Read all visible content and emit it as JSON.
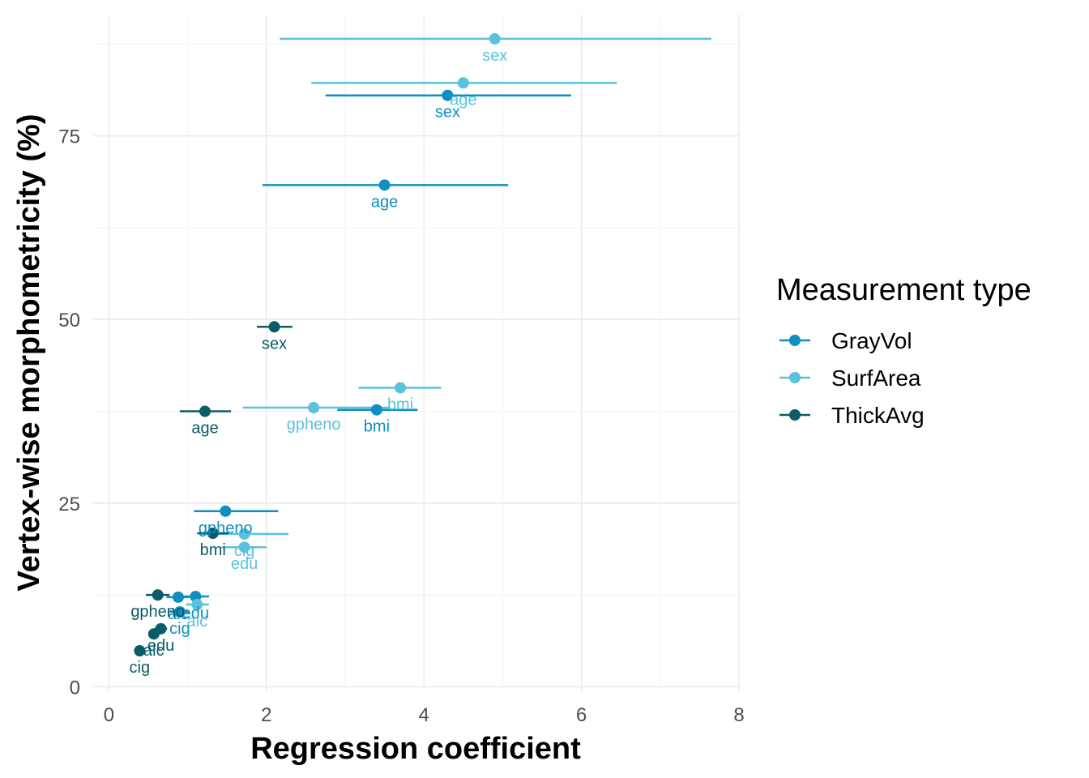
{
  "chart_data": {
    "type": "scatter",
    "xlabel": "Regression coefficient",
    "ylabel": "Vertex-wise morphometricity (%)",
    "xlim": [
      -0.2,
      8.0
    ],
    "ylim": [
      -0.5,
      91.5
    ],
    "x_ticks": [
      0,
      2,
      4,
      6,
      8
    ],
    "y_ticks": [
      0,
      25,
      50,
      75
    ],
    "x_tick_labels": [
      "0",
      "2",
      "4",
      "6",
      "8"
    ],
    "y_tick_labels": [
      "0",
      "25",
      "50",
      "75"
    ],
    "grid": true,
    "error_bars": "horizontal",
    "legend": {
      "title": "Measurement type",
      "position": "right",
      "entries": [
        "GrayVol",
        "SurfArea",
        "ThickAvg"
      ]
    },
    "series": [
      {
        "name": "GrayVol",
        "color": "#0f8fbf",
        "points": [
          {
            "label": "sex",
            "x": 4.3,
            "y": 80.5,
            "xmin": 2.75,
            "xmax": 5.87
          },
          {
            "label": "age",
            "x": 3.5,
            "y": 68.3,
            "xmin": 1.95,
            "xmax": 5.07
          },
          {
            "label": "bmi",
            "x": 3.4,
            "y": 37.7,
            "xmin": 2.9,
            "xmax": 3.92
          },
          {
            "label": "gpheno",
            "x": 1.48,
            "y": 23.9,
            "xmin": 1.08,
            "xmax": 2.15
          },
          {
            "label": "edu",
            "x": 1.1,
            "y": 12.3,
            "xmin": 0.9,
            "xmax": 1.27
          },
          {
            "label": "alc",
            "x": 0.88,
            "y": 12.2,
            "xmin": 0.73,
            "xmax": 1.02
          },
          {
            "label": "cig",
            "x": 0.9,
            "y": 10.2,
            "xmin": 0.78,
            "xmax": 1.03
          }
        ]
      },
      {
        "name": "SurfArea",
        "color": "#5bc2dc",
        "points": [
          {
            "label": "sex",
            "x": 4.9,
            "y": 88.2,
            "xmin": 2.17,
            "xmax": 7.65
          },
          {
            "label": "age",
            "x": 4.5,
            "y": 82.2,
            "xmin": 2.57,
            "xmax": 6.45
          },
          {
            "label": "bmi",
            "x": 3.7,
            "y": 40.7,
            "xmin": 3.17,
            "xmax": 4.22
          },
          {
            "label": "gpheno",
            "x": 2.6,
            "y": 38.0,
            "xmin": 1.7,
            "xmax": 3.55
          },
          {
            "label": "cig",
            "x": 1.72,
            "y": 20.8,
            "xmin": 1.15,
            "xmax": 2.28
          },
          {
            "label": "edu",
            "x": 1.72,
            "y": 19.0,
            "xmin": 1.43,
            "xmax": 2.0
          },
          {
            "label": "alc",
            "x": 1.12,
            "y": 11.2,
            "xmin": 0.98,
            "xmax": 1.27
          }
        ]
      },
      {
        "name": "ThickAvg",
        "color": "#0b5c66",
        "points": [
          {
            "label": "sex",
            "x": 2.1,
            "y": 49.0,
            "xmin": 1.88,
            "xmax": 2.33
          },
          {
            "label": "age",
            "x": 1.22,
            "y": 37.5,
            "xmin": 0.9,
            "xmax": 1.55
          },
          {
            "label": "bmi",
            "x": 1.32,
            "y": 20.9,
            "xmin": 1.12,
            "xmax": 1.52
          },
          {
            "label": "gpheno",
            "x": 0.62,
            "y": 12.5,
            "xmin": 0.47,
            "xmax": 0.77
          },
          {
            "label": "edu",
            "x": 0.66,
            "y": 7.9,
            "xmin": 0.58,
            "xmax": 0.74
          },
          {
            "label": "alc",
            "x": 0.57,
            "y": 7.2,
            "xmin": 0.5,
            "xmax": 0.64
          },
          {
            "label": "cig",
            "x": 0.39,
            "y": 4.9,
            "xmin": 0.33,
            "xmax": 0.45
          }
        ]
      }
    ]
  }
}
